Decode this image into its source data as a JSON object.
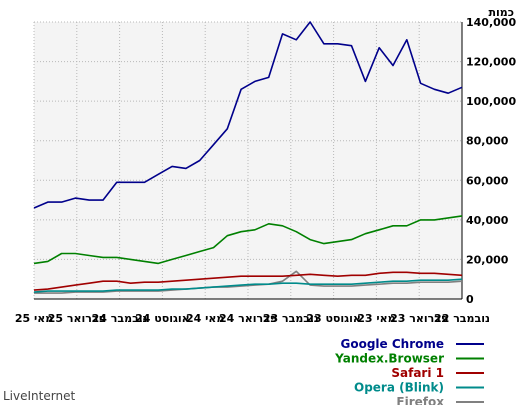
{
  "chart_data": {
    "type": "line",
    "ylabel": "כמות",
    "ylim": [
      0,
      140000
    ],
    "yticks": [
      0,
      20000,
      40000,
      60000,
      80000,
      100000,
      120000,
      140000
    ],
    "ytick_labels": [
      "0",
      "20,000",
      "40,000",
      "60,000",
      "80,000",
      "100,000",
      "120,000",
      "140,000"
    ],
    "x_tick_labels": [
      "נובמבר 22",
      "פברואר 23",
      "מאי 23",
      "אוגוסט 23",
      "נובמבר 23",
      "פברואר 24",
      "מאי 24",
      "אוגוסט 24",
      "נובמבר 24",
      "פברואר 25",
      "מאי 25"
    ],
    "x_direction": "right-to-left",
    "grid": true,
    "legend_position": "bottom-right",
    "series": [
      {
        "name": "Google Chrome",
        "color": "#00008b",
        "values": [
          107000,
          104000,
          106000,
          109000,
          131000,
          118000,
          127000,
          110000,
          128000,
          129000,
          129000,
          140000,
          131000,
          134000,
          112000,
          110000,
          106000,
          86000,
          78000,
          70000,
          66000,
          67000,
          63000,
          59000,
          59000,
          59000,
          50000,
          50000,
          51000,
          49000,
          49000,
          46000
        ]
      },
      {
        "name": "Yandex.Browser",
        "color": "#008000",
        "values": [
          42000,
          41000,
          40000,
          40000,
          37000,
          37000,
          35000,
          33000,
          30000,
          29000,
          28000,
          30000,
          34000,
          37000,
          38000,
          35000,
          34000,
          32000,
          26000,
          24000,
          22000,
          20000,
          18000,
          19000,
          20000,
          21000,
          21000,
          22000,
          23000,
          23000,
          19000,
          18000
        ]
      },
      {
        "name": "Safari 1",
        "color": "#a00000",
        "values": [
          12000,
          12500,
          13000,
          13000,
          13500,
          13500,
          13000,
          12000,
          12000,
          11500,
          12000,
          12500,
          12000,
          11500,
          11500,
          11500,
          11500,
          11000,
          10500,
          10000,
          9500,
          9000,
          8500,
          8500,
          8000,
          9000,
          9000,
          8000,
          7000,
          6000,
          5000,
          4500
        ]
      },
      {
        "name": "Opera (Blink)",
        "color": "#008b8b",
        "values": [
          10000,
          9500,
          9500,
          9500,
          9000,
          9000,
          8500,
          8000,
          7500,
          7500,
          7500,
          7500,
          8000,
          8000,
          7500,
          7500,
          7000,
          6500,
          6000,
          5500,
          5000,
          5000,
          4500,
          4500,
          4500,
          4500,
          4000,
          4000,
          4000,
          4000,
          4000,
          3500
        ]
      },
      {
        "name": "Firefox",
        "color": "#808080",
        "values": [
          9000,
          8500,
          8500,
          8500,
          8000,
          8000,
          7500,
          7000,
          6500,
          6500,
          6500,
          7000,
          14000,
          9000,
          7500,
          7000,
          6500,
          6000,
          6000,
          5500,
          5000,
          4500,
          4000,
          4000,
          4000,
          4000,
          3500,
          3500,
          3500,
          3000,
          3000,
          3000
        ]
      }
    ]
  },
  "footer": {
    "brand": "LiveInternet"
  }
}
